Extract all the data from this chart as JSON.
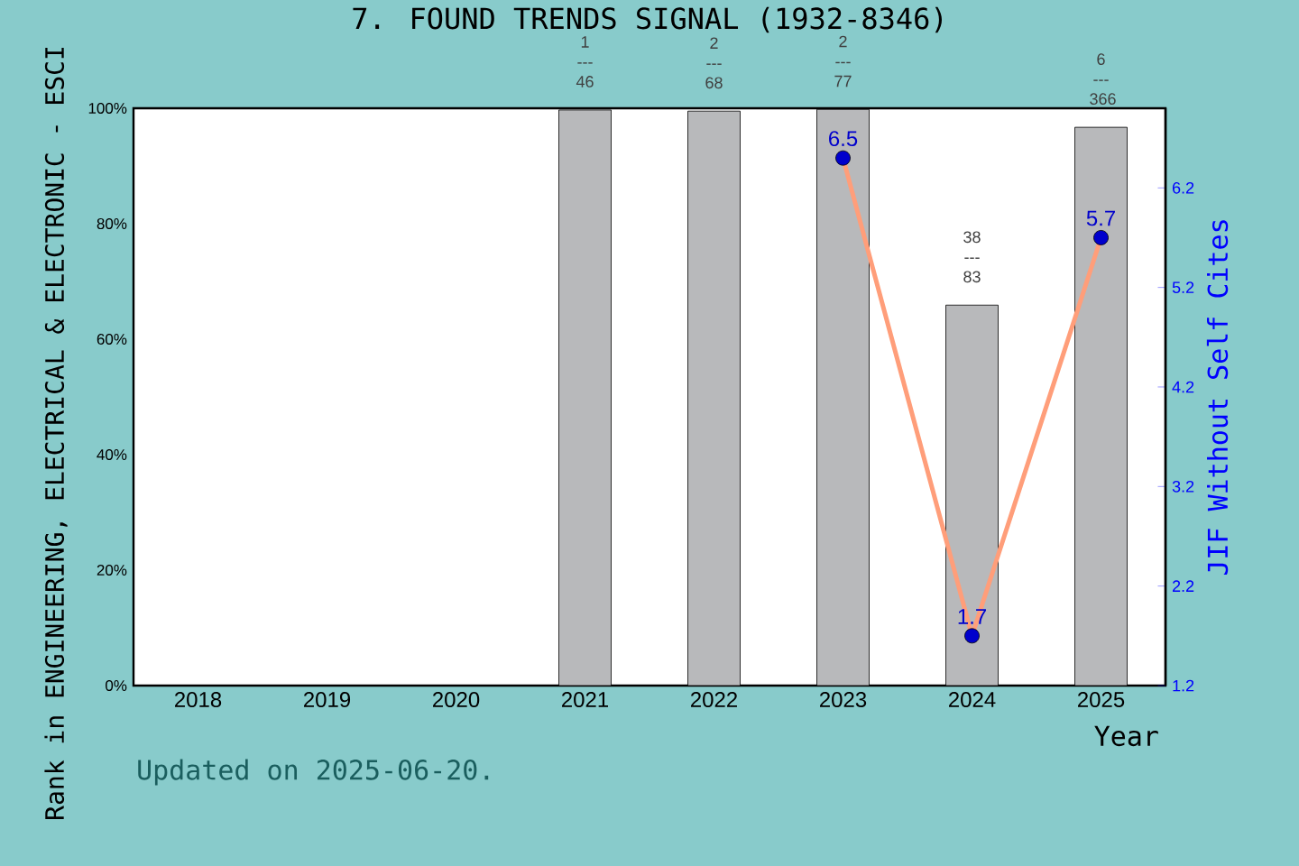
{
  "chart_data": {
    "type": "bar",
    "title": "7. FOUND TRENDS SIGNAL (1932-8346)",
    "categories": [
      "2018",
      "2019",
      "2020",
      "2021",
      "2022",
      "2023",
      "2024",
      "2025"
    ],
    "series": [
      {
        "color": "#b8b9bb",
        "values": [
          null,
          null,
          null,
          99.7,
          99.5,
          99.8,
          65.9,
          96.7
        ]
      },
      {
        "type": "line",
        "axis": "y2",
        "color": "#ff9e7a",
        "marker": "circle",
        "data_labels": true,
        "values": [
          null,
          null,
          null,
          null,
          null,
          6.5,
          1.7,
          5.7
        ]
      }
    ],
    "ylim": [
      0,
      100
    ],
    "yticks": [
      {
        "value": 0,
        "label": "0%"
      },
      {
        "value": 20,
        "label": "20%"
      },
      {
        "value": 40,
        "label": "40%"
      },
      {
        "value": 60,
        "label": "60%"
      },
      {
        "value": 80,
        "label": "80%"
      },
      {
        "value": 100,
        "label": "100%"
      }
    ],
    "y2lim": [
      1.2,
      7.0
    ],
    "y2ticks": [
      1.2,
      2.2,
      3.2,
      4.2,
      5.2,
      6.2
    ],
    "xlabel": "Year",
    "ylabel": "Rank in ENGINEERING, ELECTRICAL & ELECTRONIC - ESCI",
    "y2label": "JIF Without Self Cites",
    "annotations": [
      {
        "text": "1 --- 46",
        "x": "2021",
        "y": 99.7
      },
      {
        "text": "2 --- 68",
        "x": "2022",
        "y": 99.5
      },
      {
        "text": "2 --- 77",
        "x": "2023",
        "y": 99.8
      },
      {
        "text": "38 --- 83",
        "x": "2024",
        "y": 65.9
      },
      {
        "text": "6 --- 366",
        "x": "2025",
        "y": 96.7
      },
      "Updated on 2025-06-20."
    ]
  }
}
